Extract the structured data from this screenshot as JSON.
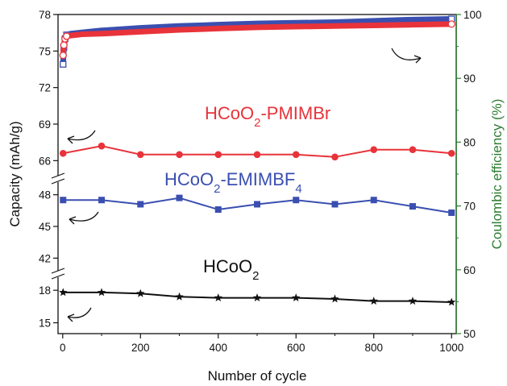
{
  "chart_data": {
    "type": "line",
    "xlabel": "Number of cycle",
    "ylabel": "Capacity (mAh/g)",
    "y2label": "Coulombic efficiency (%)",
    "xlim": [
      0,
      1000
    ],
    "x_ticks": [
      "0",
      "200",
      "400",
      "600",
      "800",
      "1000"
    ],
    "y_ticks": [
      "15",
      "18",
      "42",
      "45",
      "48",
      "66",
      "69",
      "72",
      "75",
      "78"
    ],
    "y2lim": [
      50,
      100
    ],
    "y2_ticks": [
      "50",
      "60",
      "70",
      "80",
      "90",
      "100"
    ],
    "y_axis_breaks": [
      [
        19.5,
        40.5
      ],
      [
        49.5,
        64.5
      ]
    ],
    "series": [
      {
        "name": "HCoO2-PMIMBr",
        "axis": "left",
        "color": "#e8333a",
        "marker": "circle",
        "x": [
          1,
          100,
          200,
          300,
          400,
          500,
          600,
          700,
          800,
          900,
          1000
        ],
        "values": [
          66.6,
          67.2,
          66.5,
          66.5,
          66.5,
          66.5,
          66.5,
          66.3,
          66.9,
          66.9,
          66.6
        ]
      },
      {
        "name": "HCoO2-EMIMBF4",
        "axis": "left",
        "color": "#3a4fb0",
        "marker": "square",
        "x": [
          1,
          100,
          200,
          300,
          400,
          500,
          600,
          700,
          800,
          900,
          1000
        ],
        "values": [
          47.5,
          47.5,
          47.1,
          47.7,
          46.6,
          47.1,
          47.5,
          47.1,
          47.5,
          46.9,
          46.3
        ]
      },
      {
        "name": "HCoO2",
        "axis": "left",
        "color": "#111111",
        "marker": "star",
        "x": [
          1,
          100,
          200,
          300,
          400,
          500,
          600,
          700,
          800,
          900,
          1000
        ],
        "values": [
          17.8,
          17.8,
          17.7,
          17.4,
          17.3,
          17.3,
          17.3,
          17.2,
          17.0,
          17.0,
          16.9
        ]
      },
      {
        "name": "HCoO2-EMIMBF4 coulombic efficiency",
        "axis": "right",
        "color": "#3a4fb0",
        "marker": "square-open",
        "x": [
          1,
          3,
          6,
          10,
          20,
          50,
          100,
          200,
          300,
          400,
          500,
          600,
          700,
          800,
          900,
          1000
        ],
        "values": [
          92.2,
          94.8,
          96.2,
          96.8,
          97.0,
          97.2,
          97.5,
          97.9,
          98.2,
          98.4,
          98.6,
          98.7,
          98.8,
          99.0,
          99.2,
          99.3
        ]
      },
      {
        "name": "HCoO2-PMIMBr coulombic efficiency",
        "axis": "right",
        "color": "#e8333a",
        "marker": "circle-open",
        "x": [
          1,
          3,
          6,
          10,
          20,
          50,
          100,
          200,
          300,
          400,
          500,
          600,
          700,
          800,
          900,
          1000
        ],
        "values": [
          93.6,
          95.2,
          96.2,
          96.6,
          96.7,
          96.9,
          97.0,
          97.3,
          97.6,
          97.8,
          98.0,
          98.1,
          98.2,
          98.3,
          98.4,
          98.5
        ]
      }
    ],
    "annotations": [
      {
        "text": "HCoO",
        "sub": "2",
        "tail": "-PMIMBr",
        "sub2": "",
        "color": "#e8333a"
      },
      {
        "text": "HCoO",
        "sub": "2",
        "tail": "-EMIMBF",
        "sub2": "4",
        "color": "#3a4fb0"
      },
      {
        "text": "HCoO",
        "sub": "2",
        "tail": "",
        "sub2": "",
        "color": "#111111"
      }
    ],
    "colors": {
      "y2_axis": "#2e7d32",
      "axis": "#111111"
    }
  }
}
